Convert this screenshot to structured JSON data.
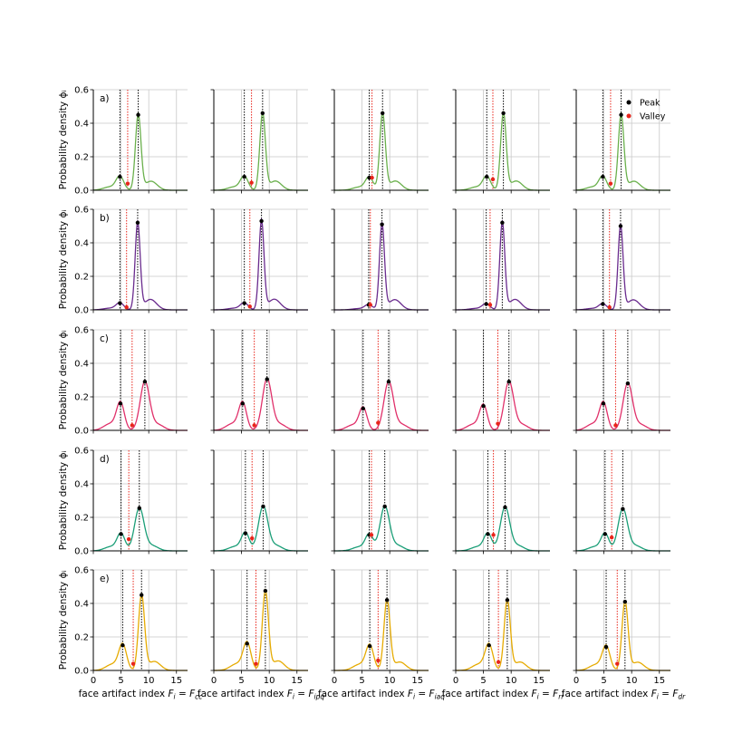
{
  "colors": {
    "rows": [
      "#6ab04c",
      "#6a2c8e",
      "#e0306a",
      "#1a9e77",
      "#e6ab02"
    ],
    "peak": "#000000",
    "valley": "#e8251b",
    "peak_line": "#000000",
    "valley_line": "#e8251b",
    "grid": "#c8c8c8"
  },
  "legend": {
    "peak": "Peak",
    "valley": "Valley",
    "placement": "top-right of top-right panel"
  },
  "ylabel": "Probability density ϕᵢ",
  "xlabels": [
    "face artifact index Fᵢ = F꜀꜀",
    "face artifact index Fᵢ = Fᵢₚⁱ",
    "face artifact index Fᵢ = Fᵢₐⁱ",
    "face artifact index Fᵢ = Fᵣᵣ",
    "face artifact index Fᵢ = Fₔᵣ"
  ],
  "xlabels_plain": [
    [
      "face artifact index ",
      "F",
      "i",
      " = ",
      "F",
      "cc"
    ],
    [
      "face artifact index ",
      "F",
      "i",
      " = ",
      "F",
      "ipq"
    ],
    [
      "face artifact index ",
      "F",
      "i",
      " = ",
      "F",
      "iaq"
    ],
    [
      "face artifact index ",
      "F",
      "i",
      " = ",
      "F",
      "rr"
    ],
    [
      "face artifact index ",
      "F",
      "i",
      " = ",
      "F",
      "dr"
    ]
  ],
  "row_tags": [
    "a)",
    "b)",
    "c)",
    "d)",
    "e)"
  ],
  "chart_data": {
    "type": "line",
    "layout": "5 rows x 5 columns of small multiples",
    "xlim": [
      0,
      17
    ],
    "ylim": [
      0,
      0.6
    ],
    "xticks": [
      0,
      5,
      10,
      15
    ],
    "yticks": [
      0.0,
      0.2,
      0.4,
      0.6
    ],
    "xtick_labels": [
      "0",
      "5",
      "10",
      "15"
    ],
    "ytick_labels": [
      "0.0",
      "0.2",
      "0.4",
      "0.6"
    ],
    "grid": true,
    "panels": [
      [
        {
          "p1": [
            4.8,
            0.08
          ],
          "v": [
            6.2,
            0.04
          ],
          "p2": [
            8.1,
            0.45
          ],
          "w": 0.5
        },
        {
          "p1": [
            5.5,
            0.08
          ],
          "v": [
            6.8,
            0.045
          ],
          "p2": [
            8.8,
            0.46
          ],
          "w": 0.5
        },
        {
          "p1": [
            6.3,
            0.075
          ],
          "v": [
            6.8,
            0.075
          ],
          "p2": [
            8.7,
            0.46
          ],
          "w": 0.5
        },
        {
          "p1": [
            5.6,
            0.08
          ],
          "v": [
            6.7,
            0.065
          ],
          "p2": [
            8.6,
            0.46
          ],
          "w": 0.5
        },
        {
          "p1": [
            4.8,
            0.08
          ],
          "v": [
            6.2,
            0.04
          ],
          "p2": [
            8.1,
            0.45
          ],
          "w": 0.5
        }
      ],
      [
        {
          "p1": [
            4.8,
            0.04
          ],
          "v": [
            6.0,
            0.015
          ],
          "p2": [
            8.0,
            0.52
          ],
          "w": 0.45
        },
        {
          "p1": [
            5.5,
            0.04
          ],
          "v": [
            6.5,
            0.02
          ],
          "p2": [
            8.6,
            0.53
          ],
          "w": 0.45
        },
        {
          "p1": [
            6.2,
            0.03
          ],
          "v": [
            6.5,
            0.03
          ],
          "p2": [
            8.6,
            0.51
          ],
          "w": 0.45
        },
        {
          "p1": [
            5.5,
            0.035
          ],
          "v": [
            6.2,
            0.03
          ],
          "p2": [
            8.4,
            0.52
          ],
          "w": 0.45
        },
        {
          "p1": [
            4.8,
            0.035
          ],
          "v": [
            6.0,
            0.015
          ],
          "p2": [
            8.0,
            0.5
          ],
          "w": 0.45
        }
      ],
      [
        {
          "p1": [
            4.9,
            0.16
          ],
          "v": [
            7.0,
            0.03
          ],
          "p2": [
            9.3,
            0.29
          ],
          "w": 0.85
        },
        {
          "p1": [
            5.2,
            0.16
          ],
          "v": [
            7.3,
            0.03
          ],
          "p2": [
            9.6,
            0.305
          ],
          "w": 0.85
        },
        {
          "p1": [
            5.2,
            0.13
          ],
          "v": [
            7.9,
            0.045
          ],
          "p2": [
            9.8,
            0.29
          ],
          "w": 0.85
        },
        {
          "p1": [
            5.0,
            0.145
          ],
          "v": [
            7.6,
            0.04
          ],
          "p2": [
            9.6,
            0.29
          ],
          "w": 0.85
        },
        {
          "p1": [
            4.9,
            0.16
          ],
          "v": [
            7.1,
            0.03
          ],
          "p2": [
            9.3,
            0.28
          ],
          "w": 0.85
        }
      ],
      [
        {
          "p1": [
            5.0,
            0.1
          ],
          "v": [
            6.4,
            0.07
          ],
          "p2": [
            8.3,
            0.255
          ],
          "w": 0.85
        },
        {
          "p1": [
            5.7,
            0.105
          ],
          "v": [
            6.9,
            0.075
          ],
          "p2": [
            8.9,
            0.265
          ],
          "w": 0.85
        },
        {
          "p1": [
            6.3,
            0.095
          ],
          "v": [
            6.7,
            0.095
          ],
          "p2": [
            9.1,
            0.265
          ],
          "w": 0.85
        },
        {
          "p1": [
            5.8,
            0.1
          ],
          "v": [
            6.8,
            0.095
          ],
          "p2": [
            8.9,
            0.26
          ],
          "w": 0.85
        },
        {
          "p1": [
            5.2,
            0.1
          ],
          "v": [
            6.4,
            0.08
          ],
          "p2": [
            8.4,
            0.25
          ],
          "w": 0.85
        }
      ],
      [
        {
          "p1": [
            5.3,
            0.15
          ],
          "v": [
            7.2,
            0.04
          ],
          "p2": [
            8.7,
            0.45
          ],
          "w": 0.55
        },
        {
          "p1": [
            6.0,
            0.16
          ],
          "v": [
            7.6,
            0.04
          ],
          "p2": [
            9.3,
            0.475
          ],
          "w": 0.55
        },
        {
          "p1": [
            6.4,
            0.145
          ],
          "v": [
            7.9,
            0.06
          ],
          "p2": [
            9.5,
            0.42
          ],
          "w": 0.55
        },
        {
          "p1": [
            6.0,
            0.15
          ],
          "v": [
            7.7,
            0.05
          ],
          "p2": [
            9.3,
            0.42
          ],
          "w": 0.55
        },
        {
          "p1": [
            5.4,
            0.14
          ],
          "v": [
            7.4,
            0.04
          ],
          "p2": [
            8.8,
            0.41
          ],
          "w": 0.55
        }
      ]
    ]
  }
}
